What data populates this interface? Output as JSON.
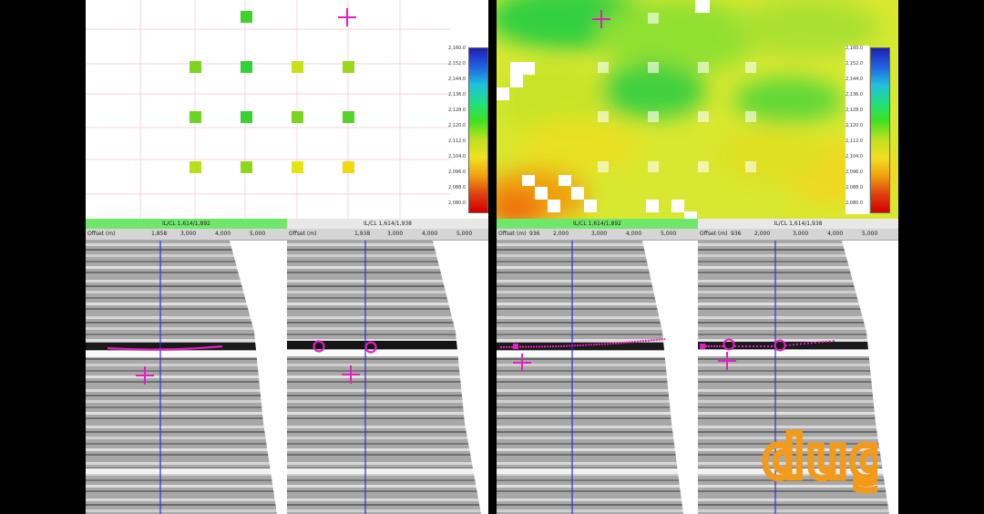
{
  "colorbar_ticks": [
    "2,160.0",
    "2,152.0",
    "2,144.0",
    "2,136.0",
    "2,128.0",
    "2,120.0",
    "2,112.0",
    "2,104.0",
    "2,096.0",
    "2,088.0",
    "2,080.0"
  ],
  "section_headers": {
    "left_a": "IL/CL 1,614/1,892",
    "left_b": "IL/CL 1,614/1,938",
    "right_a": "IL/CL 1,614/1,892",
    "right_b": "IL/CL 1,614/1,938"
  },
  "axis": {
    "label": "Offset (m)",
    "left_a_ticks": [
      "1,858",
      "3,000",
      "4,000",
      "5,000"
    ],
    "left_b_ticks": [
      "1,938",
      "3,000",
      "4,000",
      "5,000"
    ],
    "right_a_ticks": [
      "936",
      "2,000",
      "3,000",
      "4,000",
      "5,000"
    ],
    "right_b_ticks": [
      "936",
      "2,000",
      "3,000",
      "4,000",
      "5,000"
    ]
  },
  "logo_text": "dug",
  "colors": {
    "pick": "#e020c0",
    "cursor_line": "#3030d0",
    "header_green": "#6ee86a"
  }
}
